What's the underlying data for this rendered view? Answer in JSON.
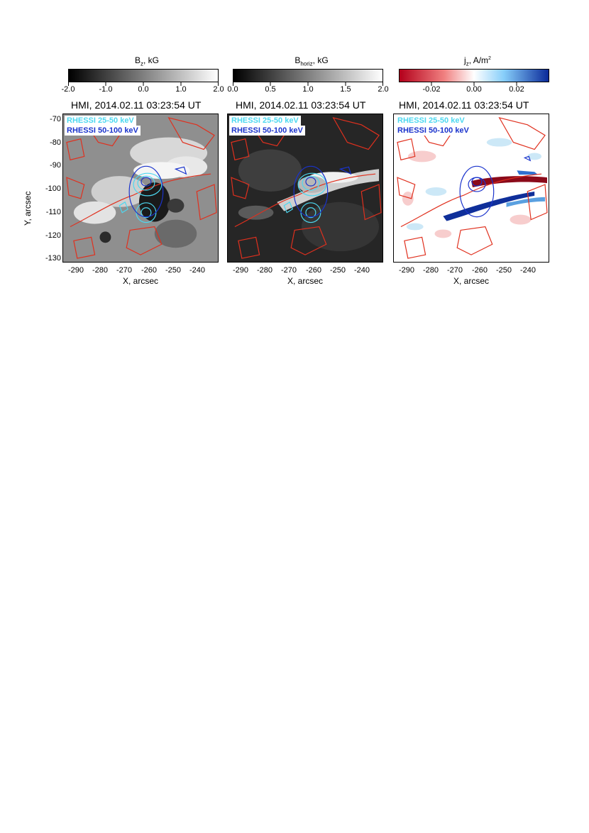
{
  "panels": [
    {
      "colorbar_title": "B",
      "colorbar_sub": "z",
      "colorbar_suffix": ", kG",
      "colorbar_ticks": [
        "-2.0",
        "-1.0",
        "0.0",
        "1.0",
        "2.0"
      ],
      "colorbar_colors": [
        "#000000",
        "#ffffff"
      ],
      "map_title": "HMI, 2014.02.11 03:23:54 UT",
      "legend_25_50": "RHESSI 25-50 keV",
      "legend_50_100": "RHESSI 50-100 keV",
      "x_ticks": [
        "-290",
        "-280",
        "-270",
        "-260",
        "-250",
        "-240"
      ],
      "x_label": "X, arcsec",
      "y_ticks": [
        "-70",
        "-80",
        "-90",
        "-100",
        "-110",
        "-120",
        "-130"
      ],
      "y_label": "Y, arcsec"
    },
    {
      "colorbar_title": "B",
      "colorbar_sub": "horiz",
      "colorbar_suffix": ", kG",
      "colorbar_ticks": [
        "0.0",
        "0.5",
        "1.0",
        "1.5",
        "2.0"
      ],
      "colorbar_colors": [
        "#000000",
        "#ffffff"
      ],
      "map_title": "HMI, 2014.02.11 03:23:54 UT",
      "legend_25_50": "RHESSI 25-50 keV",
      "legend_50_100": "RHESSI 50-100 keV",
      "x_ticks": [
        "-290",
        "-280",
        "-270",
        "-260",
        "-250",
        "-240"
      ],
      "x_label": "X, arcsec"
    },
    {
      "colorbar_title": "j",
      "colorbar_sub": "z",
      "colorbar_suffix": ", A/m",
      "colorbar_sup": "2",
      "colorbar_ticks": [
        "-0.02",
        "0.00",
        "0.02"
      ],
      "colorbar_colors": [
        "#b3001b",
        "#ffffff",
        "#0a2a9a"
      ],
      "map_title": "HMI, 2014.02.11 03:23:54 UT",
      "legend_25_50": "RHESSI 25-50 keV",
      "legend_50_100": "RHESSI 50-100 keV",
      "x_ticks": [
        "-290",
        "-280",
        "-270",
        "-260",
        "-250",
        "-240"
      ],
      "x_label": "X, arcsec"
    }
  ],
  "colors": {
    "contour_red": "#e0301e",
    "rhessi_25_50": "#4dd8f0",
    "rhessi_50_100": "#1a33cc"
  },
  "chart_data": {
    "type": "heatmap",
    "x_range": [
      -295,
      -233
    ],
    "y_range": [
      -131,
      -68
    ],
    "x_ticks": [
      -290,
      -280,
      -270,
      -260,
      -250,
      -240
    ],
    "y_ticks": [
      -70,
      -80,
      -90,
      -100,
      -110,
      -120,
      -130
    ],
    "rhessi_25_50_sources": [
      [
        -262,
        -99
      ],
      [
        -263,
        -112
      ]
    ],
    "rhessi_50_100_sources": [
      [
        -262,
        -100
      ],
      [
        -262,
        -113
      ]
    ]
  }
}
